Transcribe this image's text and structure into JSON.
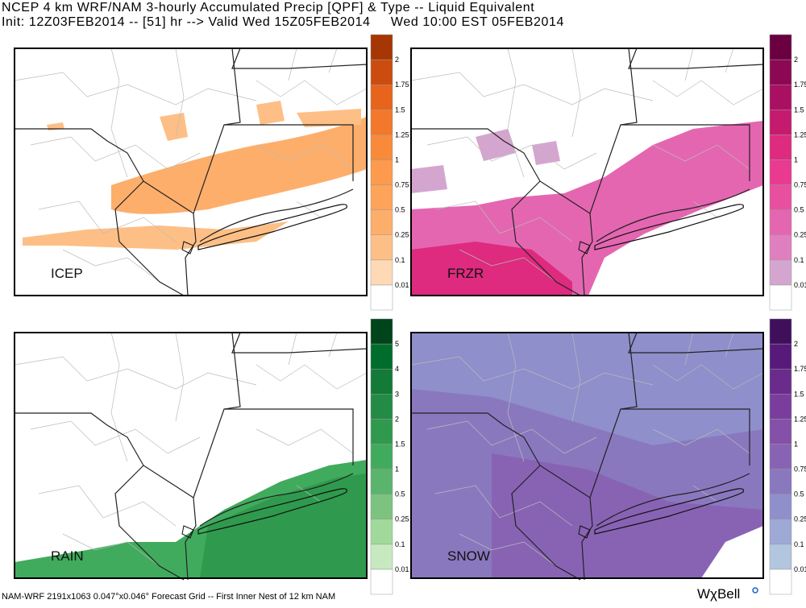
{
  "header": {
    "line1": "NCEP 4 km WRF/NAM 3-hourly Accumulated Precip [QPF] & Type -- Liquid Equivalent",
    "line2": "Init: 12Z03FEB2014 -- [51] hr --> Valid Wed 15Z05FEB2014     Wed 10:00 EST 05FEB2014"
  },
  "panels": [
    {
      "label": "ICEP",
      "ticks": [
        "0.01",
        "0.1",
        "0.25",
        "0.5",
        "0.75",
        "1",
        "1.25",
        "1.5",
        "1.75",
        "2"
      ],
      "colors": [
        "#ffffff",
        "#fdd9b5",
        "#fdbf86",
        "#fdae6b",
        "#fda35a",
        "#fd9a4d",
        "#f98a3a",
        "#f3782b",
        "#e6641c",
        "#cc4c10",
        "#a63603"
      ]
    },
    {
      "label": "FRZR",
      "ticks": [
        "0.01",
        "0.1",
        "0.25",
        "0.5",
        "0.75",
        "1",
        "1.25",
        "1.5",
        "1.75",
        "2"
      ],
      "colors": [
        "#ffffff",
        "#d4a6cf",
        "#e07fbf",
        "#e466b0",
        "#e8509f",
        "#e93a8f",
        "#de2a7f",
        "#c51b6f",
        "#aa1062",
        "#8c0853",
        "#6a0040"
      ]
    },
    {
      "label": "RAIN",
      "ticks": [
        "0.01",
        "0.1",
        "0.25",
        "0.5",
        "1",
        "1.5",
        "2",
        "3",
        "4",
        "5"
      ],
      "colors": [
        "#ffffff",
        "#c7e9c0",
        "#a1d99b",
        "#7cc37f",
        "#5ab46c",
        "#41ab5d",
        "#2f9a4d",
        "#238b45",
        "#137a38",
        "#006d2c",
        "#00441b"
      ]
    },
    {
      "label": "SNOW",
      "ticks": [
        "0.01",
        "0.1",
        "0.25",
        "0.5",
        "0.75",
        "1",
        "1.25",
        "1.5",
        "1.75",
        "2"
      ],
      "colors": [
        "#ffffff",
        "#b3c6e0",
        "#9ea9d6",
        "#8f8fcb",
        "#8a78bf",
        "#8863b4",
        "#8450a8",
        "#7a3d9e",
        "#6a2b8d",
        "#571a7a",
        "#3f0f5c"
      ]
    }
  ],
  "footer": {
    "text": "NAM-WRF 2191x1063 0.047°x0.046° Forecast Grid -- First Inner Nest of 12 km NAM",
    "logo": "WχBell"
  }
}
